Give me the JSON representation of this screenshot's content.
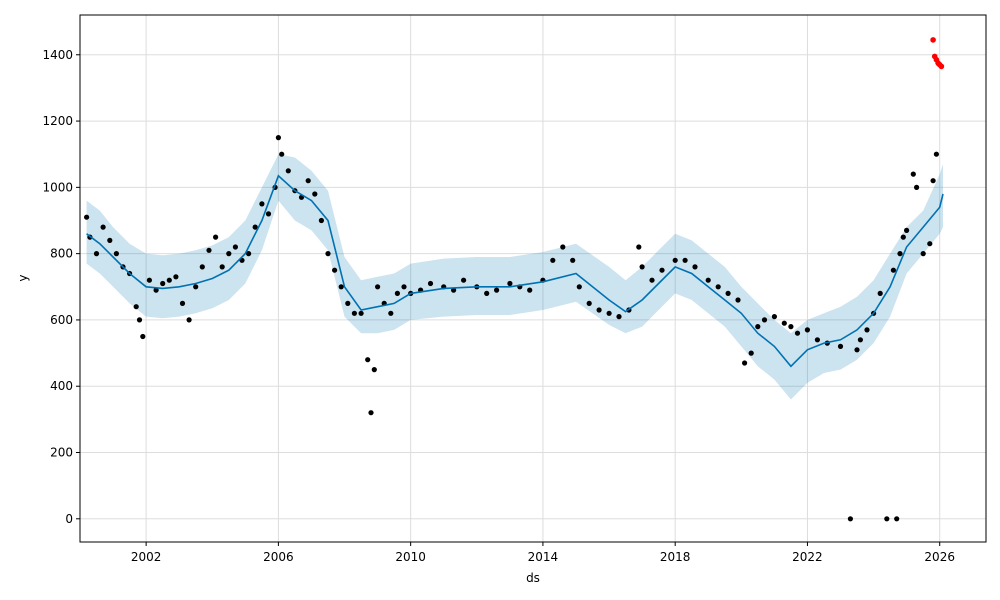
{
  "chart_data": {
    "type": "scatter",
    "xlabel": "ds",
    "ylabel": "y",
    "x_ticks": [
      "2002",
      "2006",
      "2010",
      "2014",
      "2018",
      "2022",
      "2026"
    ],
    "y_ticks": [
      0,
      200,
      400,
      600,
      800,
      1000,
      1200,
      1400
    ],
    "xlim": [
      2000.0,
      2027.4
    ],
    "ylim": [
      -70,
      1520
    ],
    "grid": true,
    "colors": {
      "observed": "#000000",
      "forecast": "#0072b2",
      "uncertainty": "#0072b2",
      "recent": "#ff0000"
    },
    "series": [
      {
        "role": "forecast",
        "x": [
          2000.2,
          2000.6,
          2001.0,
          2001.5,
          2002.0,
          2002.5,
          2003.0,
          2003.5,
          2004.0,
          2004.5,
          2005.0,
          2005.5,
          2006.0,
          2006.5,
          2007.0,
          2007.5,
          2008.0,
          2008.5,
          2009.0,
          2009.5,
          2010.0,
          2011.0,
          2012.0,
          2013.0,
          2014.0,
          2015.0,
          2016.0,
          2016.5,
          2017.0,
          2017.5,
          2018.0,
          2018.5,
          2019.0,
          2019.5,
          2020.0,
          2020.5,
          2021.0,
          2021.5,
          2022.0,
          2022.5,
          2023.0,
          2023.5,
          2024.0,
          2024.5,
          2025.0,
          2025.5,
          2026.0,
          2026.1
        ],
        "y": [
          860,
          830,
          790,
          740,
          700,
          695,
          700,
          710,
          725,
          750,
          800,
          900,
          1035,
          990,
          960,
          900,
          700,
          630,
          640,
          650,
          680,
          695,
          700,
          700,
          715,
          740,
          660,
          625,
          660,
          710,
          760,
          740,
          700,
          660,
          620,
          560,
          520,
          460,
          510,
          530,
          540,
          570,
          620,
          700,
          820,
          880,
          940,
          980
        ]
      },
      {
        "role": "uncertainty-upper",
        "x": [
          2000.2,
          2000.6,
          2001.0,
          2001.5,
          2002.0,
          2002.5,
          2003.0,
          2003.5,
          2004.0,
          2004.5,
          2005.0,
          2005.5,
          2006.0,
          2006.5,
          2007.0,
          2007.5,
          2008.0,
          2008.5,
          2009.0,
          2009.5,
          2010.0,
          2011.0,
          2012.0,
          2013.0,
          2014.0,
          2015.0,
          2016.0,
          2016.5,
          2017.0,
          2017.5,
          2018.0,
          2018.5,
          2019.0,
          2019.5,
          2020.0,
          2020.5,
          2021.0,
          2021.5,
          2022.0,
          2022.5,
          2023.0,
          2023.5,
          2024.0,
          2024.5,
          2025.0,
          2025.5,
          2026.0,
          2026.1
        ],
        "y": [
          960,
          930,
          880,
          830,
          800,
          795,
          800,
          810,
          825,
          850,
          900,
          1000,
          1100,
          1090,
          1050,
          990,
          790,
          720,
          730,
          740,
          770,
          785,
          790,
          790,
          805,
          830,
          760,
          720,
          760,
          810,
          860,
          840,
          800,
          760,
          700,
          650,
          600,
          560,
          600,
          620,
          640,
          670,
          720,
          800,
          880,
          930,
          1040,
          1070
        ]
      },
      {
        "role": "uncertainty-lower",
        "x": [
          2000.2,
          2000.6,
          2001.0,
          2001.5,
          2002.0,
          2002.5,
          2003.0,
          2003.5,
          2004.0,
          2004.5,
          2005.0,
          2005.5,
          2006.0,
          2006.5,
          2007.0,
          2007.5,
          2008.0,
          2008.5,
          2009.0,
          2009.5,
          2010.0,
          2011.0,
          2012.0,
          2013.0,
          2014.0,
          2015.0,
          2016.0,
          2016.5,
          2017.0,
          2017.5,
          2018.0,
          2018.5,
          2019.0,
          2019.5,
          2020.0,
          2020.5,
          2021.0,
          2021.5,
          2022.0,
          2022.5,
          2023.0,
          2023.5,
          2024.0,
          2024.5,
          2025.0,
          2025.5,
          2026.0,
          2026.1
        ],
        "y": [
          770,
          740,
          700,
          650,
          610,
          605,
          610,
          620,
          635,
          660,
          710,
          810,
          960,
          900,
          870,
          810,
          610,
          560,
          560,
          570,
          600,
          610,
          615,
          615,
          630,
          655,
          585,
          560,
          580,
          630,
          680,
          660,
          620,
          580,
          520,
          460,
          420,
          360,
          410,
          440,
          450,
          480,
          530,
          610,
          740,
          800,
          860,
          880
        ]
      },
      {
        "role": "observed",
        "x": [
          2000.2,
          2000.3,
          2000.5,
          2000.7,
          2000.9,
          2001.1,
          2001.3,
          2001.5,
          2001.7,
          2001.8,
          2001.9,
          2002.1,
          2002.3,
          2002.5,
          2002.7,
          2002.9,
          2003.1,
          2003.3,
          2003.5,
          2003.7,
          2003.9,
          2004.1,
          2004.3,
          2004.5,
          2004.7,
          2004.9,
          2005.1,
          2005.3,
          2005.5,
          2005.7,
          2005.9,
          2006.0,
          2006.1,
          2006.3,
          2006.5,
          2006.7,
          2006.9,
          2007.1,
          2007.3,
          2007.5,
          2007.7,
          2007.9,
          2008.1,
          2008.3,
          2008.5,
          2008.7,
          2008.8,
          2008.9,
          2009.0,
          2009.2,
          2009.4,
          2009.6,
          2009.8,
          2010.0,
          2010.3,
          2010.6,
          2011.0,
          2011.3,
          2011.6,
          2012.0,
          2012.3,
          2012.6,
          2013.0,
          2013.3,
          2013.6,
          2014.0,
          2014.3,
          2014.6,
          2014.9,
          2015.1,
          2015.4,
          2015.7,
          2016.0,
          2016.3,
          2016.6,
          2016.9,
          2017.0,
          2017.3,
          2017.6,
          2018.0,
          2018.3,
          2018.6,
          2019.0,
          2019.3,
          2019.6,
          2019.9,
          2020.1,
          2020.3,
          2020.5,
          2020.7,
          2021.0,
          2021.3,
          2021.5,
          2021.7,
          2022.0,
          2022.3,
          2022.6,
          2023.0,
          2023.3,
          2023.5,
          2023.6,
          2023.8,
          2024.0,
          2024.2,
          2024.4,
          2024.6,
          2024.7,
          2024.8,
          2024.9,
          2025.0,
          2025.2,
          2025.3,
          2025.5,
          2025.7,
          2025.8,
          2025.9
        ],
        "y": [
          910,
          850,
          800,
          880,
          840,
          800,
          760,
          740,
          640,
          600,
          550,
          720,
          690,
          710,
          720,
          730,
          650,
          600,
          700,
          760,
          810,
          850,
          760,
          800,
          820,
          780,
          800,
          880,
          950,
          920,
          1000,
          1150,
          1100,
          1050,
          990,
          970,
          1020,
          980,
          900,
          800,
          750,
          700,
          650,
          620,
          620,
          480,
          320,
          450,
          700,
          650,
          620,
          680,
          700,
          680,
          690,
          710,
          700,
          690,
          720,
          700,
          680,
          690,
          710,
          700,
          690,
          720,
          780,
          820,
          780,
          700,
          650,
          630,
          620,
          610,
          630,
          820,
          760,
          720,
          750,
          780,
          780,
          760,
          720,
          700,
          680,
          660,
          470,
          500,
          580,
          600,
          610,
          590,
          580,
          560,
          570,
          540,
          530,
          520,
          0,
          510,
          540,
          570,
          620,
          680,
          0,
          750,
          0,
          800,
          850,
          870,
          1040,
          1000,
          800,
          830,
          1020,
          1100
        ]
      },
      {
        "role": "recent",
        "x": [
          2025.8,
          2025.85,
          2025.9,
          2025.95,
          2026.0,
          2026.05
        ],
        "y": [
          1445,
          1395,
          1385,
          1375,
          1370,
          1365
        ]
      }
    ]
  }
}
